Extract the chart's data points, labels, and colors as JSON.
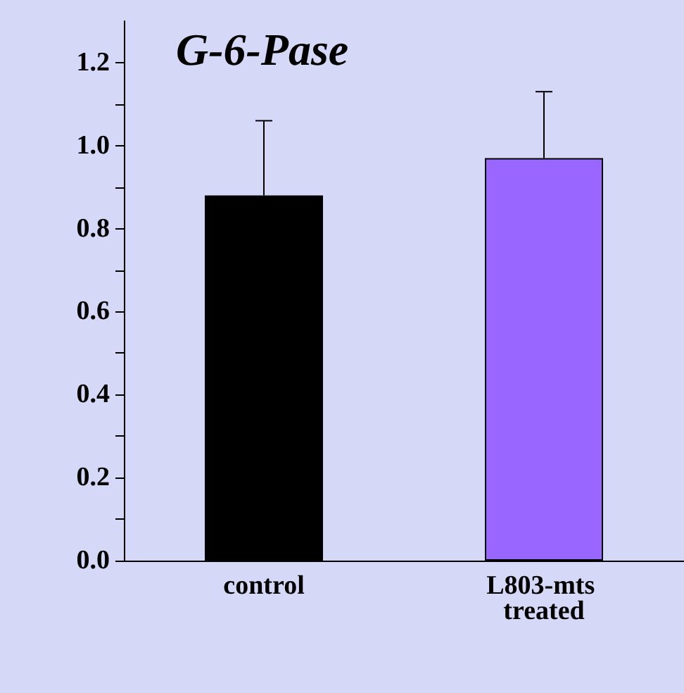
{
  "chart_data": {
    "type": "bar",
    "title": "G-6-Pase",
    "categories": [
      "control",
      "L803-mts treated"
    ],
    "series": [
      {
        "colors": [
          "#000000",
          "#9966ff"
        ],
        "values": [
          0.88,
          0.97
        ],
        "errors": [
          [
            0.88,
            1.06
          ],
          [
            0.97,
            1.13
          ]
        ]
      }
    ],
    "ylim": [
      0,
      1.3
    ],
    "yticks": [
      {
        "value": 0,
        "label": "0.0"
      },
      {
        "value": 0.1,
        "label": null
      },
      {
        "value": 0.2,
        "label": "0.2"
      },
      {
        "value": 0.3,
        "label": null
      },
      {
        "value": 0.4,
        "label": "0.4"
      },
      {
        "value": 0.5,
        "label": null
      },
      {
        "value": 0.6,
        "label": "0.6"
      },
      {
        "value": 0.7,
        "label": null
      },
      {
        "value": 0.8,
        "label": "0.8"
      },
      {
        "value": 0.9,
        "label": null
      },
      {
        "value": 1,
        "label": "1.0"
      },
      {
        "value": 1.1,
        "label": null
      },
      {
        "value": 1.2,
        "label": "1.2"
      }
    ],
    "data_labels": false
  }
}
